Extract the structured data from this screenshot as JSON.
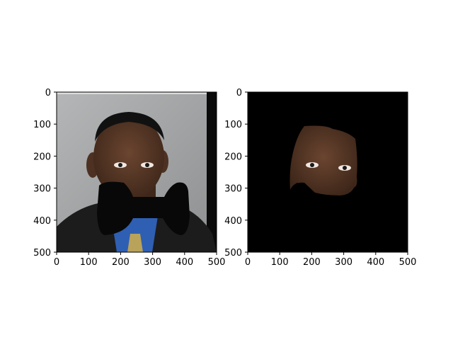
{
  "chart_data": [
    {
      "type": "image",
      "title": "",
      "xlabel": "",
      "ylabel": "",
      "xlim": [
        0,
        500
      ],
      "ylim": [
        500,
        0
      ],
      "xticks": [
        0,
        100,
        200,
        300,
        400,
        500
      ],
      "yticks": [
        0,
        100,
        200,
        300,
        400,
        500
      ],
      "x_tick_labels": [
        "0",
        "100",
        "200",
        "300",
        "400",
        "500"
      ],
      "y_tick_labels": [
        "0",
        "100",
        "200",
        "300",
        "400",
        "500"
      ],
      "image_content": "portrait photo with black bow-tie shaped mask over mouth area",
      "colors": {
        "background": "#a6a8a9",
        "mask": "#080808",
        "skin": "#5a3a28",
        "suit": "#1c1c1c",
        "shirt": "#2f5fb3"
      }
    },
    {
      "type": "image",
      "title": "",
      "xlabel": "",
      "ylabel": "",
      "xlim": [
        0,
        500
      ],
      "ylim": [
        500,
        0
      ],
      "xticks": [
        0,
        100,
        200,
        300,
        400,
        500
      ],
      "yticks": [
        0,
        100,
        200,
        300,
        400,
        500
      ],
      "x_tick_labels": [
        "0",
        "100",
        "200",
        "300",
        "400",
        "500"
      ],
      "y_tick_labels": [
        "0",
        "100",
        "200",
        "300",
        "400",
        "500"
      ],
      "image_content": "black background with extracted upper face region",
      "colors": {
        "background": "#000000",
        "skin": "#5a3a28"
      }
    }
  ]
}
